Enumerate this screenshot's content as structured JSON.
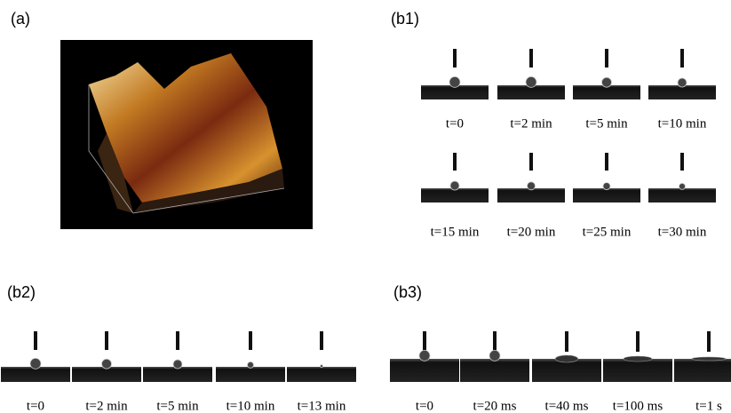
{
  "panels": [
    {
      "label": "(a)"
    },
    {
      "label": "(b1)",
      "frames": [
        "t=0",
        "t=2 min",
        "t=5 min",
        "t=10 min",
        "t=15 min",
        "t=20 min",
        "t=25 min",
        "t=30 min"
      ]
    },
    {
      "label": "(b2)",
      "frames": [
        "t=0",
        "t=2 min",
        "t=5 min",
        "t=10 min",
        "t=13 min"
      ]
    },
    {
      "label": "(b3)",
      "frames": [
        "t=0",
        "t=20 ms",
        "t=40 ms",
        "t=100 ms",
        "t=1 s"
      ]
    }
  ]
}
